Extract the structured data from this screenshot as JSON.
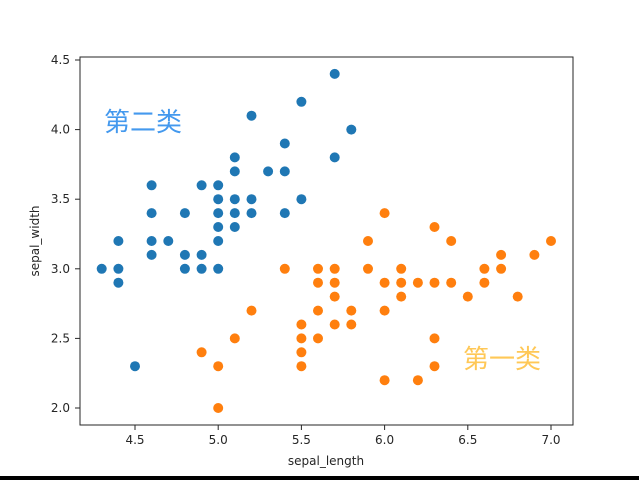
{
  "chart_data": {
    "type": "scatter",
    "title": "",
    "xlabel": "sepal_length",
    "ylabel": "sepal_width",
    "xlim": [
      4.19,
      7.14
    ],
    "ylim": [
      1.88,
      4.52
    ],
    "xticks": [
      4.5,
      5.0,
      5.5,
      6.0,
      6.5,
      7.0
    ],
    "xtick_labels": [
      "4.5",
      "5.0",
      "5.5",
      "6.0",
      "6.5",
      "7.0"
    ],
    "yticks": [
      2.0,
      2.5,
      3.0,
      3.5,
      4.0,
      4.5
    ],
    "ytick_labels": [
      "2.0",
      "2.5",
      "3.0",
      "3.5",
      "4.0",
      "4.5"
    ],
    "grid": false,
    "legend": null,
    "series": [
      {
        "name": "第二类",
        "color": "#1f77b4",
        "points": [
          [
            4.3,
            3.0
          ],
          [
            4.4,
            3.2
          ],
          [
            4.4,
            3.0
          ],
          [
            4.4,
            2.9
          ],
          [
            4.5,
            2.3
          ],
          [
            4.6,
            3.6
          ],
          [
            4.6,
            3.4
          ],
          [
            4.6,
            3.2
          ],
          [
            4.6,
            3.1
          ],
          [
            4.7,
            3.2
          ],
          [
            4.8,
            3.4
          ],
          [
            4.8,
            3.1
          ],
          [
            4.8,
            3.0
          ],
          [
            4.9,
            3.6
          ],
          [
            4.9,
            3.1
          ],
          [
            4.9,
            3.0
          ],
          [
            5.0,
            3.6
          ],
          [
            5.0,
            3.5
          ],
          [
            5.0,
            3.4
          ],
          [
            5.0,
            3.3
          ],
          [
            5.0,
            3.2
          ],
          [
            5.0,
            3.0
          ],
          [
            5.1,
            3.8
          ],
          [
            5.1,
            3.7
          ],
          [
            5.1,
            3.5
          ],
          [
            5.1,
            3.4
          ],
          [
            5.1,
            3.3
          ],
          [
            5.2,
            4.1
          ],
          [
            5.2,
            3.5
          ],
          [
            5.2,
            3.4
          ],
          [
            5.3,
            3.7
          ],
          [
            5.4,
            3.9
          ],
          [
            5.4,
            3.7
          ],
          [
            5.4,
            3.4
          ],
          [
            5.5,
            4.2
          ],
          [
            5.5,
            3.5
          ],
          [
            5.7,
            4.4
          ],
          [
            5.7,
            3.8
          ],
          [
            5.8,
            4.0
          ]
        ]
      },
      {
        "name": "第一类",
        "color": "#ff7f0e",
        "points": [
          [
            4.9,
            2.4
          ],
          [
            5.0,
            2.3
          ],
          [
            5.0,
            2.0
          ],
          [
            5.1,
            2.5
          ],
          [
            5.2,
            2.7
          ],
          [
            5.4,
            3.0
          ],
          [
            5.5,
            2.6
          ],
          [
            5.5,
            2.5
          ],
          [
            5.5,
            2.4
          ],
          [
            5.5,
            2.3
          ],
          [
            5.6,
            3.0
          ],
          [
            5.6,
            2.9
          ],
          [
            5.6,
            2.7
          ],
          [
            5.6,
            2.5
          ],
          [
            5.7,
            3.0
          ],
          [
            5.7,
            2.9
          ],
          [
            5.7,
            2.8
          ],
          [
            5.7,
            2.6
          ],
          [
            5.8,
            2.7
          ],
          [
            5.8,
            2.6
          ],
          [
            5.9,
            3.2
          ],
          [
            5.9,
            3.0
          ],
          [
            6.0,
            3.4
          ],
          [
            6.0,
            2.9
          ],
          [
            6.0,
            2.7
          ],
          [
            6.0,
            2.2
          ],
          [
            6.1,
            3.0
          ],
          [
            6.1,
            2.9
          ],
          [
            6.1,
            2.8
          ],
          [
            6.2,
            2.9
          ],
          [
            6.2,
            2.2
          ],
          [
            6.3,
            3.3
          ],
          [
            6.3,
            2.9
          ],
          [
            6.3,
            2.5
          ],
          [
            6.3,
            2.3
          ],
          [
            6.4,
            3.2
          ],
          [
            6.4,
            2.9
          ],
          [
            6.5,
            2.8
          ],
          [
            6.6,
            3.0
          ],
          [
            6.6,
            2.9
          ],
          [
            6.7,
            3.1
          ],
          [
            6.7,
            3.0
          ],
          [
            6.8,
            2.8
          ],
          [
            6.9,
            3.1
          ],
          [
            7.0,
            3.2
          ]
        ]
      }
    ],
    "annotations": [
      {
        "text": "第二类",
        "x": 4.32,
        "y": 4.0,
        "color": "#4499ee"
      },
      {
        "text": "第一类",
        "x": 6.47,
        "y": 2.33,
        "color": "#ffc857"
      }
    ]
  },
  "labels": {
    "xlabel": "sepal_length",
    "ylabel": "sepal_width",
    "annotation_cluster_2": "第二类",
    "annotation_cluster_1": "第一类"
  }
}
